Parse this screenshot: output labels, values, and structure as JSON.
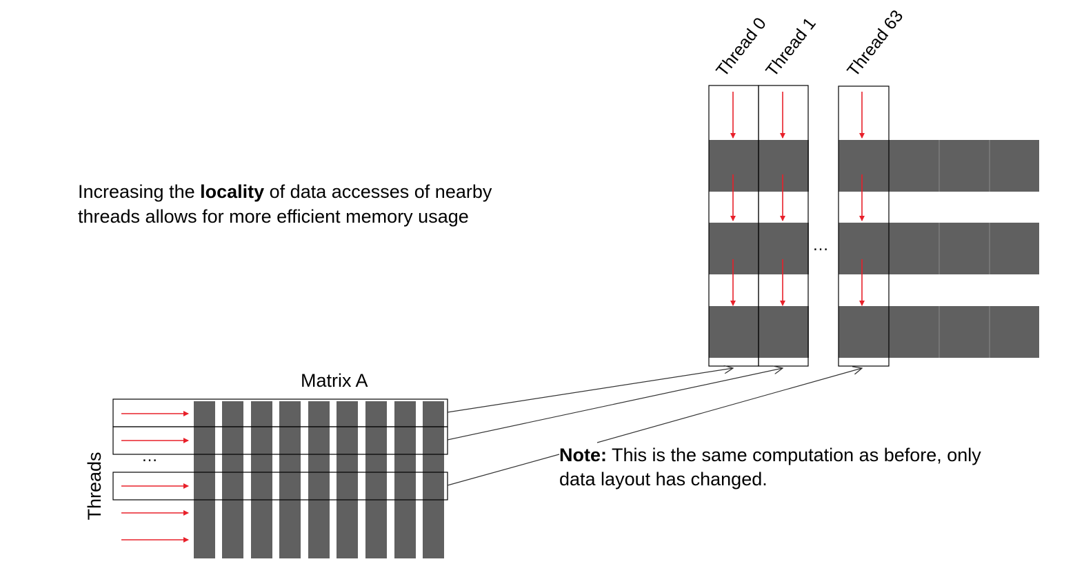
{
  "description": {
    "line1_before": "Increasing the ",
    "line1_bold": "locality",
    "line1_after": " of data accesses of nearby",
    "line2": "threads allows for more efficient memory usage"
  },
  "note": {
    "bold": "Note:",
    "line1_rest": " This is the same computation as before, only",
    "line2": "data layout has changed."
  },
  "matrix": {
    "title": "Matrix A",
    "threads_label": "Threads",
    "ellipsis": "…"
  },
  "columns": {
    "labels": [
      "Thread 0",
      "Thread 1",
      "Thread 63"
    ],
    "ellipsis": "…"
  },
  "colors": {
    "block_fill": "#606060",
    "arrow_red": "#e8202a",
    "outline": "#000000",
    "connector": "#333333"
  }
}
